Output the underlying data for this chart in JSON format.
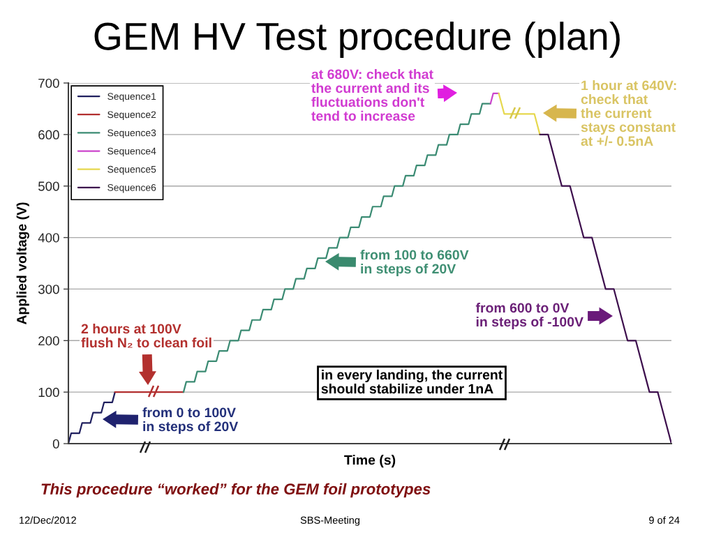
{
  "chart_data": {
    "type": "line",
    "title": "GEM HV Test procedure (plan)",
    "xlabel": "Time (s)",
    "ylabel": "Applied voltage (V)",
    "categories": [
      null,
      null,
      null,
      null,
      null,
      null,
      null,
      null,
      null,
      null,
      null,
      null,
      null,
      null,
      null,
      null,
      null,
      null,
      null,
      null,
      null,
      null,
      null,
      null,
      null,
      null,
      null,
      null,
      null,
      null,
      null,
      null,
      null,
      null,
      null,
      null,
      null,
      null,
      null,
      null,
      null,
      null,
      null,
      null,
      null,
      null,
      null,
      null,
      null,
      null,
      null,
      null,
      null,
      null,
      null,
      null,
      null,
      null,
      null,
      null,
      null,
      null,
      null,
      null,
      null,
      null,
      null,
      null,
      null,
      null,
      null,
      null,
      null,
      null,
      null,
      null,
      null,
      null,
      null,
      null,
      null,
      null,
      null,
      null,
      null,
      null,
      null,
      null,
      null,
      null,
      null,
      null,
      null,
      null,
      null,
      null,
      null,
      null,
      null,
      null,
      null,
      null,
      null,
      null,
      null,
      null,
      null,
      null,
      null,
      null,
      null,
      null,
      null,
      null,
      null,
      null,
      null,
      null,
      null,
      null,
      null,
      null,
      null,
      null,
      null,
      null,
      null,
      null,
      null,
      null,
      null,
      null,
      null,
      null,
      null,
      null,
      null,
      null,
      null,
      null,
      null,
      null,
      null,
      null,
      null,
      null,
      null,
      null,
      null,
      null,
      null,
      null,
      null,
      null,
      null,
      null,
      null,
      null,
      null,
      null,
      null,
      null,
      null,
      null,
      null,
      null,
      null,
      null,
      null,
      null,
      null,
      null,
      null,
      null,
      null,
      null,
      null,
      null,
      null,
      null,
      null,
      null,
      null,
      null,
      null,
      null,
      null,
      null,
      null,
      null,
      null,
      null,
      null,
      null,
      null,
      null,
      null,
      null,
      null,
      null,
      null,
      null,
      null,
      null,
      null,
      null,
      null,
      null,
      null,
      null,
      null,
      null,
      null,
      null,
      null,
      null,
      null,
      null,
      null,
      null,
      null
    ],
    "series": [
      {
        "name": "Sequence1",
        "color": "#1f1f5e",
        "values": [
          0,
          20,
          20,
          20,
          20,
          40,
          40,
          40,
          40,
          60,
          60,
          60,
          60,
          80,
          80,
          80,
          80,
          100,
          null,
          null,
          null,
          null,
          null,
          null,
          null,
          null,
          null,
          null,
          null,
          null,
          null,
          null,
          null,
          null,
          null,
          null,
          null,
          null,
          null,
          null,
          null,
          null,
          null,
          null,
          null,
          null,
          null,
          null,
          null,
          null,
          null,
          null,
          null,
          null,
          null,
          null,
          null,
          null,
          null,
          null,
          null,
          null,
          null,
          null,
          null,
          null,
          null,
          null,
          null,
          null,
          null,
          null,
          null,
          null,
          null,
          null,
          null,
          null,
          null,
          null,
          null,
          null,
          null,
          null,
          null,
          null,
          null,
          null,
          null,
          null,
          null,
          null,
          null,
          null,
          null,
          null,
          null,
          null,
          null,
          null,
          null,
          null,
          null,
          null,
          null,
          null,
          null,
          null,
          null,
          null,
          null,
          null,
          null,
          null,
          null,
          null,
          null,
          null,
          null,
          null,
          null,
          null,
          null,
          null,
          null,
          null,
          null,
          null,
          null,
          null,
          null,
          null,
          null,
          null,
          null,
          null,
          null,
          null,
          null,
          null,
          null,
          null,
          null,
          null,
          null,
          null,
          null,
          null,
          null,
          null,
          null,
          null,
          null,
          null,
          null,
          null,
          null,
          null,
          null,
          null,
          null,
          null,
          null,
          null,
          null,
          null,
          null,
          null,
          null,
          null,
          null,
          null,
          null,
          null,
          null,
          null,
          null,
          null,
          null,
          null,
          null,
          null,
          null,
          null,
          null,
          null,
          null,
          null,
          null,
          null,
          null,
          null,
          null,
          null,
          null,
          null,
          null,
          null,
          null,
          null,
          null,
          null,
          null,
          null,
          null,
          null,
          null,
          null,
          null,
          null,
          null,
          null,
          null,
          null,
          null,
          null,
          null,
          null,
          null,
          null,
          null
        ]
      },
      {
        "name": "Sequence2",
        "color": "#b22f2f",
        "values": [
          null,
          null,
          null,
          null,
          null,
          null,
          null,
          null,
          null,
          null,
          null,
          null,
          null,
          null,
          null,
          null,
          null,
          100,
          100,
          100,
          100,
          100,
          100,
          100,
          100,
          100,
          100,
          100,
          100,
          100,
          100,
          100,
          100,
          100,
          100,
          100,
          100,
          100,
          100,
          100,
          100,
          100,
          100,
          null,
          null,
          null,
          null,
          null,
          null,
          null,
          null,
          null,
          null,
          null,
          null,
          null,
          null,
          null,
          null,
          null,
          null,
          null,
          null,
          null,
          null,
          null,
          null,
          null,
          null,
          null,
          null,
          null,
          null,
          null,
          null,
          null,
          null,
          null,
          null,
          null,
          null,
          null,
          null,
          null,
          null,
          null,
          null,
          null,
          null,
          null,
          null,
          null,
          null,
          null,
          null,
          null,
          null,
          null,
          null,
          null,
          null,
          null,
          null,
          null,
          null,
          null,
          null,
          null,
          null,
          null,
          null,
          null,
          null,
          null,
          null,
          null,
          null,
          null,
          null,
          null,
          null,
          null,
          null,
          null,
          null,
          null,
          null,
          null,
          null,
          null,
          null,
          null,
          null,
          null,
          null,
          null,
          null,
          null,
          null,
          null,
          null,
          null,
          null,
          null,
          null,
          null,
          null,
          null,
          null,
          null,
          null,
          null,
          null,
          null,
          null,
          null,
          null,
          null,
          null,
          null,
          null,
          null,
          null,
          null,
          null,
          null,
          null,
          null,
          null,
          null,
          null,
          null,
          null,
          null,
          null,
          null,
          null,
          null,
          null,
          null,
          null,
          null,
          null,
          null,
          null,
          null,
          null,
          null,
          null,
          null,
          null,
          null,
          null,
          null,
          null,
          null,
          null,
          null,
          null,
          null,
          null,
          null,
          null,
          null,
          null,
          null,
          null,
          null,
          null,
          null,
          null,
          null,
          null,
          null,
          null,
          null,
          null,
          null,
          null,
          null,
          null
        ]
      },
      {
        "name": "Sequence3",
        "color": "#3b8b73",
        "values": [
          null,
          null,
          null,
          null,
          null,
          null,
          null,
          null,
          null,
          null,
          null,
          null,
          null,
          null,
          null,
          null,
          null,
          null,
          null,
          null,
          null,
          null,
          null,
          null,
          null,
          null,
          null,
          null,
          null,
          null,
          null,
          null,
          null,
          null,
          null,
          null,
          null,
          null,
          null,
          null,
          null,
          null,
          100,
          120,
          120,
          120,
          120,
          140,
          140,
          140,
          140,
          160,
          160,
          160,
          160,
          180,
          180,
          180,
          180,
          200,
          200,
          200,
          200,
          220,
          220,
          220,
          220,
          240,
          240,
          240,
          240,
          260,
          260,
          260,
          260,
          280,
          280,
          280,
          280,
          300,
          300,
          300,
          300,
          320,
          320,
          320,
          320,
          340,
          340,
          340,
          340,
          360,
          360,
          360,
          360,
          380,
          380,
          380,
          380,
          400,
          400,
          400,
          400,
          420,
          420,
          420,
          420,
          440,
          440,
          440,
          440,
          460,
          460,
          460,
          460,
          480,
          480,
          480,
          480,
          500,
          500,
          500,
          500,
          520,
          520,
          520,
          520,
          540,
          540,
          540,
          540,
          560,
          560,
          560,
          560,
          580,
          580,
          580,
          580,
          600,
          600,
          600,
          600,
          620,
          620,
          620,
          620,
          640,
          640,
          640,
          640,
          660,
          660,
          660,
          660,
          null,
          null,
          null,
          null,
          null,
          null,
          null,
          null,
          null,
          null,
          null,
          null,
          null,
          null,
          null,
          null,
          null,
          null,
          null,
          null,
          null,
          null,
          null,
          null,
          null,
          null,
          null,
          null,
          null,
          null,
          null,
          null,
          null,
          null,
          null,
          null,
          null,
          null,
          null,
          null,
          null,
          null,
          null,
          null,
          null,
          null,
          null,
          null,
          null,
          null,
          null,
          null,
          null,
          null,
          null,
          null,
          null,
          null,
          null,
          null,
          null,
          null,
          null,
          null,
          null,
          null
        ]
      },
      {
        "name": "Sequence4",
        "color": "#cc44cc",
        "values": [
          null,
          null,
          null,
          null,
          null,
          null,
          null,
          null,
          null,
          null,
          null,
          null,
          null,
          null,
          null,
          null,
          null,
          null,
          null,
          null,
          null,
          null,
          null,
          null,
          null,
          null,
          null,
          null,
          null,
          null,
          null,
          null,
          null,
          null,
          null,
          null,
          null,
          null,
          null,
          null,
          null,
          null,
          null,
          null,
          null,
          null,
          null,
          null,
          null,
          null,
          null,
          null,
          null,
          null,
          null,
          null,
          null,
          null,
          null,
          null,
          null,
          null,
          null,
          null,
          null,
          null,
          null,
          null,
          null,
          null,
          null,
          null,
          null,
          null,
          null,
          null,
          null,
          null,
          null,
          null,
          null,
          null,
          null,
          null,
          null,
          null,
          null,
          null,
          null,
          null,
          null,
          null,
          null,
          null,
          null,
          null,
          null,
          null,
          null,
          null,
          null,
          null,
          null,
          null,
          null,
          null,
          null,
          null,
          null,
          null,
          null,
          null,
          null,
          null,
          null,
          null,
          null,
          null,
          null,
          null,
          null,
          null,
          null,
          null,
          null,
          null,
          null,
          null,
          null,
          null,
          null,
          null,
          null,
          null,
          null,
          null,
          null,
          null,
          null,
          null,
          null,
          null,
          null,
          null,
          null,
          null,
          null,
          null,
          null,
          null,
          null,
          null,
          null,
          null,
          660,
          680,
          680,
          680,
          null,
          null,
          null,
          null,
          null,
          null,
          null,
          null,
          null,
          null,
          null,
          null,
          null,
          null,
          null,
          null,
          null,
          null,
          null,
          null,
          null,
          null,
          null,
          null,
          null,
          null,
          null,
          null,
          null,
          null,
          null,
          null,
          null,
          null,
          null,
          null,
          null,
          null,
          null,
          null,
          null,
          null,
          null,
          null,
          null,
          null,
          null,
          null,
          null,
          null,
          null,
          null,
          null,
          null,
          null,
          null,
          null,
          null,
          null,
          null,
          null,
          null,
          null
        ]
      },
      {
        "name": "Sequence5",
        "color": "#e6d84e",
        "values": [
          null,
          null,
          null,
          null,
          null,
          null,
          null,
          null,
          null,
          null,
          null,
          null,
          null,
          null,
          null,
          null,
          null,
          null,
          null,
          null,
          null,
          null,
          null,
          null,
          null,
          null,
          null,
          null,
          null,
          null,
          null,
          null,
          null,
          null,
          null,
          null,
          null,
          null,
          null,
          null,
          null,
          null,
          null,
          null,
          null,
          null,
          null,
          null,
          null,
          null,
          null,
          null,
          null,
          null,
          null,
          null,
          null,
          null,
          null,
          null,
          null,
          null,
          null,
          null,
          null,
          null,
          null,
          null,
          null,
          null,
          null,
          null,
          null,
          null,
          null,
          null,
          null,
          null,
          null,
          null,
          null,
          null,
          null,
          null,
          null,
          null,
          null,
          null,
          null,
          null,
          null,
          null,
          null,
          null,
          null,
          null,
          null,
          null,
          null,
          null,
          null,
          null,
          null,
          null,
          null,
          null,
          null,
          null,
          null,
          null,
          null,
          null,
          null,
          null,
          null,
          null,
          null,
          null,
          null,
          null,
          null,
          null,
          null,
          null,
          null,
          null,
          null,
          null,
          null,
          null,
          null,
          null,
          null,
          null,
          null,
          null,
          null,
          null,
          null,
          null,
          null,
          null,
          null,
          null,
          null,
          null,
          null,
          null,
          null,
          null,
          null,
          null,
          null,
          null,
          null,
          null,
          null,
          680,
          660,
          640,
          640,
          640,
          640,
          640,
          640,
          640,
          640,
          640,
          640,
          640,
          640,
          620,
          600,
          null,
          null,
          null,
          null,
          null,
          null,
          null,
          null,
          null,
          null,
          null,
          null,
          null,
          null,
          null,
          null,
          null,
          null,
          null,
          null,
          null,
          null,
          null,
          null,
          null,
          null,
          null,
          null,
          null,
          null,
          null,
          null,
          null,
          null,
          null,
          null,
          null,
          null,
          null,
          null,
          null,
          null,
          null,
          null,
          null,
          null,
          null,
          null
        ]
      },
      {
        "name": "Sequence6",
        "color": "#3d0f4d",
        "values": [
          null,
          null,
          null,
          null,
          null,
          null,
          null,
          null,
          null,
          null,
          null,
          null,
          null,
          null,
          null,
          null,
          null,
          null,
          null,
          null,
          null,
          null,
          null,
          null,
          null,
          null,
          null,
          null,
          null,
          null,
          null,
          null,
          null,
          null,
          null,
          null,
          null,
          null,
          null,
          null,
          null,
          null,
          null,
          null,
          null,
          null,
          null,
          null,
          null,
          null,
          null,
          null,
          null,
          null,
          null,
          null,
          null,
          null,
          null,
          null,
          null,
          null,
          null,
          null,
          null,
          null,
          null,
          null,
          null,
          null,
          null,
          null,
          null,
          null,
          null,
          null,
          null,
          null,
          null,
          null,
          null,
          null,
          null,
          null,
          null,
          null,
          null,
          null,
          null,
          null,
          null,
          null,
          null,
          null,
          null,
          null,
          null,
          null,
          null,
          null,
          null,
          null,
          null,
          null,
          null,
          null,
          null,
          null,
          null,
          null,
          null,
          null,
          null,
          null,
          null,
          null,
          null,
          null,
          null,
          null,
          null,
          null,
          null,
          null,
          null,
          null,
          null,
          null,
          null,
          null,
          null,
          null,
          null,
          null,
          null,
          null,
          null,
          null,
          null,
          null,
          null,
          null,
          null,
          null,
          null,
          null,
          null,
          null,
          null,
          null,
          null,
          null,
          null,
          null,
          null,
          null,
          null,
          null,
          null,
          null,
          null,
          null,
          null,
          null,
          null,
          null,
          null,
          null,
          null,
          null,
          null,
          null,
          600,
          600,
          600,
          600,
          580,
          560,
          540,
          520,
          500,
          500,
          500,
          500,
          480,
          460,
          440,
          420,
          400,
          400,
          400,
          400,
          380,
          360,
          340,
          320,
          300,
          300,
          300,
          300,
          280,
          260,
          240,
          220,
          200,
          200,
          200,
          200,
          180,
          160,
          140,
          120,
          100,
          100,
          100,
          100,
          80,
          60,
          40,
          20,
          0
        ]
      }
    ],
    "ylim": [
      0,
      700
    ],
    "yticks": [
      0,
      100,
      200,
      300,
      400,
      500,
      600,
      700
    ],
    "grid": "y",
    "legend": "top left",
    "tick_labels": "y",
    "annotations": [
      "at 680V: check that\nthe current and its\nfluctuations don't\ntend to increase",
      "1 hour at 640V:\ncheck that\nthe current\nstays constant\nat +/- 0.5nA",
      "from 100 to 660V\nin steps of 20V",
      "from 600 to 0V\nin steps of -100V",
      "2 hours at 100V\nflush N₂ to clean foil",
      "from 0 to 100V\nin steps of 20V",
      "in every landing, the current\nshould stabilize under 1nA",
      "This procedure “worked” for the GEM foil prototypes",
      "12/Dec/2012",
      "SBS-Meeting",
      "9 of 24"
    ]
  }
}
